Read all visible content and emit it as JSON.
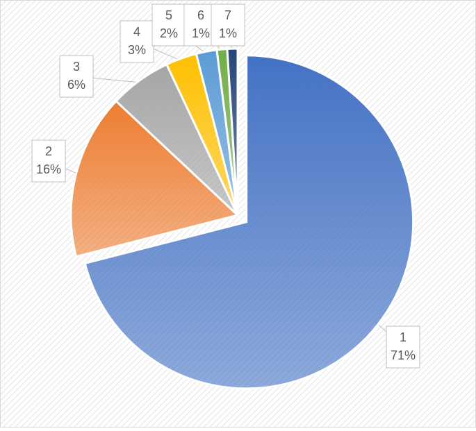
{
  "chart_data": {
    "type": "pie",
    "categories": [
      "1",
      "2",
      "3",
      "4",
      "5",
      "6",
      "7"
    ],
    "values": [
      71,
      16,
      6,
      3,
      2,
      1,
      1
    ],
    "value_labels": [
      "71%",
      "16%",
      "6%",
      "3%",
      "2%",
      "1%",
      "1%"
    ],
    "colors": [
      "#4472c4",
      "#ed7d31",
      "#a5a5a5",
      "#ffc000",
      "#5b9bd5",
      "#70ad47",
      "#264478"
    ]
  }
}
